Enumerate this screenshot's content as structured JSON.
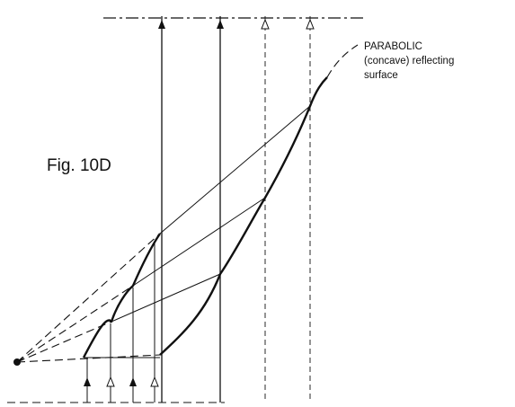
{
  "figure": {
    "label": "Fig. 10D",
    "callout_lines": [
      "PARABOLIC",
      "(concave) reflecting",
      "surface"
    ]
  }
}
